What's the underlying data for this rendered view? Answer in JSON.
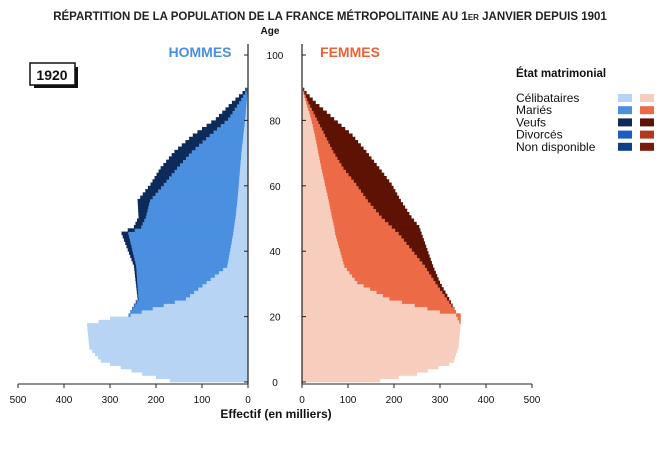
{
  "title_main": "RÉPARTITION DE LA POPULATION DE LA FRANCE MÉTROPOLITAINE AU 1",
  "title_sup": "ER",
  "title_end": " JANVIER DEPUIS 1901",
  "year": "1920",
  "men_label": "HOMMES",
  "women_label": "FEMMES",
  "age_label": "Age",
  "legend": {
    "title": "État matrimonial",
    "items": [
      {
        "label": "Célibataires",
        "men_color": "#b8d4f4",
        "women_color": "#f7cdbe"
      },
      {
        "label": "Mariés",
        "men_color": "#4a8fe0",
        "women_color": "#ec6a45"
      },
      {
        "label": "Veufs",
        "men_color": "#0c2a5a",
        "women_color": "#5e1204"
      },
      {
        "label": "Divorcés",
        "men_color": "#1a5fc0",
        "women_color": "#b33a18"
      },
      {
        "label": "Non disponible",
        "men_color": "#0d3f8a",
        "women_color": "#7a1a08"
      }
    ]
  },
  "chart_data": {
    "type": "bar",
    "subtype": "population-pyramid",
    "title": "RÉPARTITION DE LA POPULATION DE LA FRANCE MÉTROPOLITAINE AU 1ER JANVIER DEPUIS 1901",
    "xlabel": "Effectif (en milliers)",
    "ylabel": "Age",
    "x_ticks_left": [
      "500",
      "400",
      "300",
      "200",
      "100",
      "0"
    ],
    "x_ticks_right": [
      "0",
      "100",
      "200",
      "300",
      "400",
      "500"
    ],
    "x_tick_values_left": [
      500,
      400,
      300,
      200,
      100,
      0
    ],
    "x_tick_values_right": [
      0,
      100,
      200,
      300,
      400,
      500
    ],
    "y_ticks": [
      "0",
      "20",
      "40",
      "60",
      "80",
      "100"
    ],
    "y_tick_values": [
      0,
      20,
      40,
      60,
      80,
      100
    ],
    "xlim": [
      0,
      500
    ],
    "ylim": [
      0,
      105
    ],
    "grid": false,
    "legend_position": "right",
    "men_age_points": [
      0,
      2,
      5,
      6,
      10,
      17,
      19,
      20,
      25,
      35,
      45,
      47,
      50,
      55,
      60,
      65,
      70,
      75,
      80,
      85,
      88,
      90
    ],
    "men": {
      "total": [
        170,
        230,
        300,
        320,
        345,
        350,
        300,
        260,
        240,
        248,
        275,
        248,
        238,
        240,
        212,
        190,
        160,
        120,
        70,
        35,
        12,
        0
      ],
      "single": [
        170,
        230,
        300,
        320,
        345,
        350,
        300,
        255,
        135,
        45,
        32,
        30,
        27,
        23,
        20,
        17,
        14,
        10,
        6,
        3,
        1,
        0
      ],
      "married": [
        0,
        0,
        0,
        0,
        0,
        0,
        0,
        5,
        103,
        198,
        228,
        202,
        195,
        190,
        163,
        137,
        108,
        73,
        37,
        16,
        5,
        0
      ]
    },
    "women_age_points": [
      0,
      2,
      5,
      6,
      10,
      17,
      20,
      21,
      25,
      30,
      35,
      45,
      47,
      50,
      55,
      60,
      65,
      70,
      75,
      80,
      85,
      88,
      90
    ],
    "women": {
      "total": [
        170,
        250,
        320,
        330,
        340,
        345,
        345,
        335,
        320,
        300,
        285,
        260,
        255,
        238,
        215,
        195,
        168,
        140,
        110,
        70,
        30,
        10,
        0
      ],
      "single": [
        170,
        250,
        320,
        330,
        340,
        345,
        335,
        300,
        190,
        120,
        92,
        72,
        70,
        65,
        58,
        50,
        42,
        35,
        28,
        20,
        9,
        3,
        0
      ],
      "married": [
        0,
        0,
        0,
        0,
        0,
        0,
        10,
        35,
        125,
        170,
        175,
        138,
        125,
        108,
        85,
        68,
        48,
        33,
        22,
        12,
        5,
        2,
        0
      ]
    }
  }
}
